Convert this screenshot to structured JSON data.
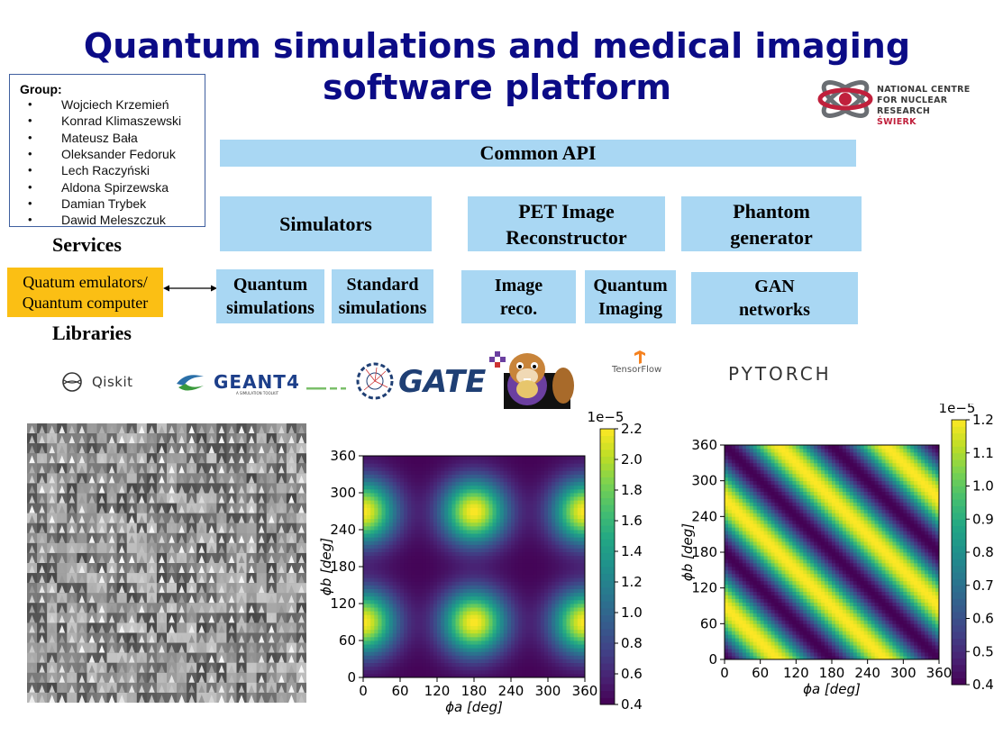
{
  "title": {
    "line1": "Quantum simulations and medical imaging",
    "line2": "software platform"
  },
  "institution": {
    "line1": "NATIONAL CENTRE",
    "line2": "FOR NUCLEAR RESEARCH",
    "line3": "ŚWIERK"
  },
  "group": {
    "label": "Group:",
    "members": [
      "Wojciech Krzemień",
      "Konrad Klimaszewski",
      "Mateusz Bała",
      "Oleksander Fedoruk",
      "Lech Raczyński",
      "Aldona Spirzewska",
      "Damian Trybek",
      "Dawid Meleszczuk"
    ]
  },
  "architecture": {
    "common_api": "Common API",
    "simulators": "Simulators",
    "pet_line1": "PET Image",
    "pet_line2": "Reconstructor",
    "phantom_line1": "Phantom",
    "phantom_line2": "generator",
    "services": "Services",
    "libraries": "Libraries",
    "emulator_line1": "Quatum emulators/",
    "emulator_line2": "Quantum computer",
    "quantum_sim_line1": "Quantum",
    "quantum_sim_line2": "simulations",
    "standard_sim_line1": "Standard",
    "standard_sim_line2": "simulations",
    "image_reco_line1": "Image",
    "image_reco_line2": "reco.",
    "quantum_imaging_line1": "Quantum",
    "quantum_imaging_line2": "Imaging",
    "gan_line1": "GAN",
    "gan_line2": "networks"
  },
  "library_logos": {
    "qiskit": "Qiskit",
    "geant4": "GEANT4",
    "geant4_tagline": "A SIMULATION TOOLKIT",
    "gate": "GATE",
    "tensorflow": "TensorFlow",
    "pytorch": "PYTORCH"
  },
  "colors": {
    "title": "#0b0b86",
    "box_blue": "#a9d7f3",
    "box_orange": "#fbbf14",
    "accent_red": "#c0203c"
  },
  "chart_data": [
    {
      "type": "heatmap",
      "title": "",
      "xlabel": "ϕa [deg]",
      "ylabel": "ϕb [deg]",
      "xlim": [
        0,
        360
      ],
      "ylim": [
        0,
        360
      ],
      "xticks": [
        0,
        60,
        120,
        180,
        240,
        300,
        360
      ],
      "yticks": [
        0,
        60,
        120,
        180,
        240,
        300,
        360
      ],
      "colormap": "viridis",
      "colorbar": {
        "range": [
          0.4,
          2.2
        ],
        "ticks": [
          "0.4",
          "0.6",
          "0.8",
          "1.0",
          "1.2",
          "1.4",
          "1.6",
          "1.8",
          "2.0",
          "2.2"
        ],
        "offset_label": "1e−5"
      },
      "peaks": [
        [
          0,
          90
        ],
        [
          180,
          90
        ],
        [
          360,
          90
        ],
        [
          0,
          270
        ],
        [
          180,
          270
        ],
        [
          360,
          270
        ]
      ]
    },
    {
      "type": "heatmap",
      "title": "",
      "xlabel": "ϕa [deg]",
      "ylabel": "ϕb [deg]",
      "xlim": [
        0,
        360
      ],
      "ylim": [
        0,
        360
      ],
      "xticks": [
        0,
        60,
        120,
        180,
        240,
        300,
        360
      ],
      "yticks": [
        0,
        60,
        120,
        180,
        240,
        300,
        360
      ],
      "colormap": "viridis",
      "colorbar": {
        "range": [
          0.4,
          1.2
        ],
        "ticks": [
          "0.4",
          "0.5",
          "0.6",
          "0.7",
          "0.8",
          "0.9",
          "1.0",
          "1.1",
          "1.2"
        ],
        "offset_label": "1e−5"
      },
      "pattern": "diagonal stripes along ϕa + ϕb = const"
    }
  ]
}
